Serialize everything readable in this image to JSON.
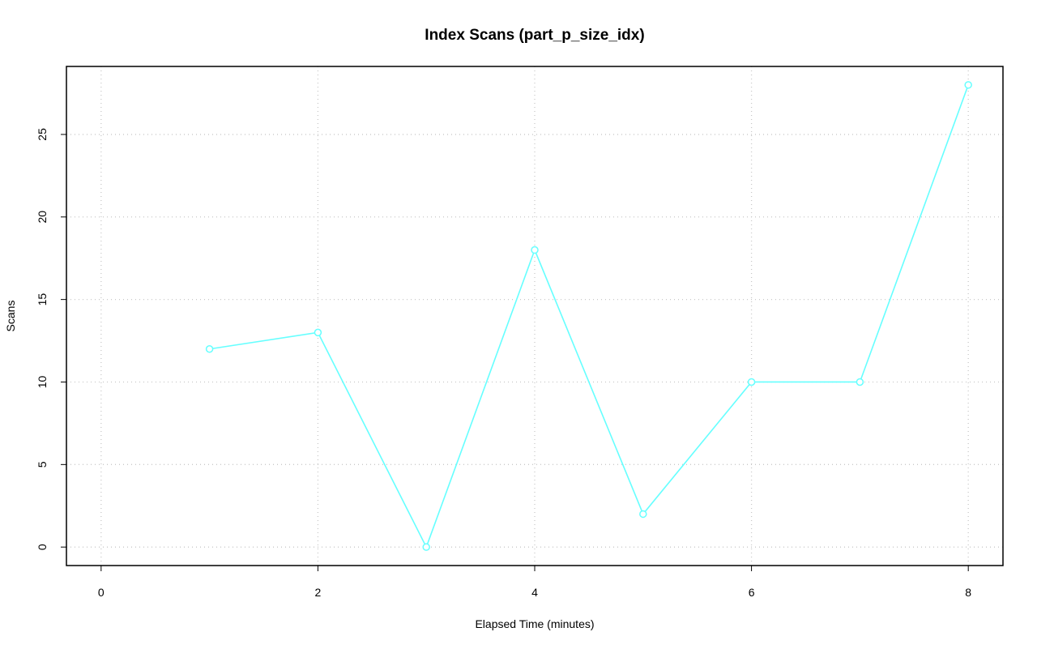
{
  "chart_data": {
    "type": "line",
    "title": "Index Scans (part_p_size_idx)",
    "x_label": "Elapsed Time (minutes)",
    "y_label": "Scans",
    "x": [
      1,
      2,
      3,
      4,
      5,
      6,
      7,
      8
    ],
    "values": [
      12,
      13,
      0,
      18,
      2,
      10,
      10,
      28
    ],
    "color": "#66ffff",
    "xlim": [
      -0.32,
      8.32
    ],
    "xticks": [
      0,
      2,
      4,
      6,
      8
    ],
    "ylim": [
      -1.12,
      29.12
    ],
    "yticks": [
      0,
      5,
      10,
      15,
      20,
      25
    ],
    "grid": true
  }
}
